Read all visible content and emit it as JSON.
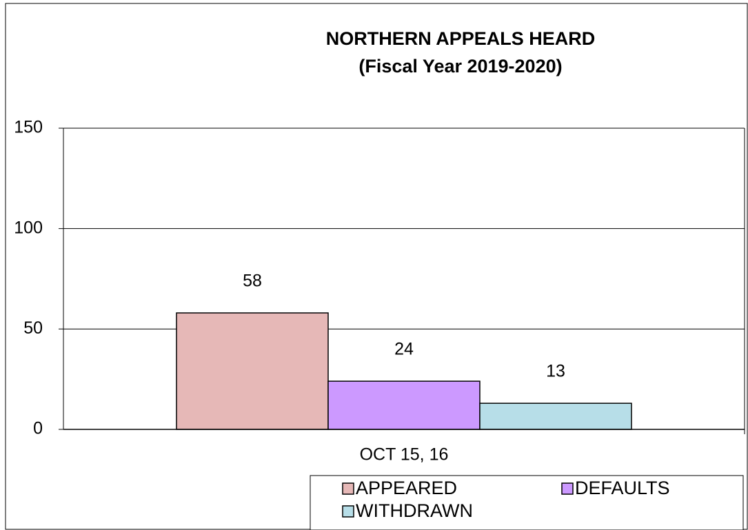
{
  "chart_data": {
    "type": "bar",
    "title": "NORTHERN APPEALS HEARD",
    "subtitle": "(Fiscal Year 2019-2020)",
    "categories": [
      "OCT 15, 16"
    ],
    "series": [
      {
        "name": "APPEARED",
        "color": "#e6b8b7",
        "values": [
          58
        ]
      },
      {
        "name": "DEFAULTS",
        "color": "#cc99ff",
        "values": [
          24
        ]
      },
      {
        "name": "WITHDRAWN",
        "color": "#b7dee8",
        "values": [
          13
        ]
      }
    ],
    "ylim": [
      0,
      150
    ],
    "yticks": [
      0,
      50,
      100,
      150
    ],
    "grid": true,
    "legend": "bottom"
  }
}
